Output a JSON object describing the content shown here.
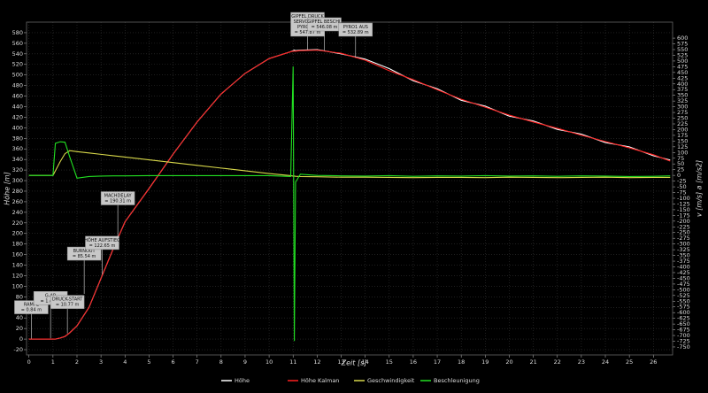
{
  "chart_data": {
    "type": "line",
    "x_label": "Zeit [s]",
    "y_label": "Höhe [m]",
    "y2_label": "v [m/s]  a [m/s2]",
    "grid": true,
    "legend": "bottom",
    "x": [
      0,
      0.5,
      1,
      1.1,
      1.3,
      1.5,
      1.7,
      2,
      2.5,
      3,
      3.5,
      4,
      5,
      6,
      7,
      8,
      9,
      10,
      10.9,
      11,
      11.05,
      11.1,
      11.3,
      12,
      13,
      14,
      15,
      16,
      17,
      18,
      19,
      20,
      21,
      22,
      23,
      24,
      25,
      26,
      26.7
    ],
    "xlim": [
      -0.1,
      26.8
    ],
    "xticks": [
      0,
      1,
      2,
      3,
      4,
      5,
      6,
      7,
      8,
      9,
      10,
      11,
      12,
      13,
      14,
      15,
      16,
      17,
      18,
      19,
      20,
      21,
      22,
      23,
      24,
      25,
      26
    ],
    "ylim": [
      -30,
      600
    ],
    "yticks": [
      -20,
      0,
      20,
      40,
      60,
      80,
      100,
      120,
      140,
      160,
      180,
      200,
      220,
      240,
      260,
      280,
      300,
      320,
      340,
      360,
      380,
      400,
      420,
      440,
      460,
      480,
      500,
      520,
      540,
      560,
      580
    ],
    "y2lim": [
      -785,
      670
    ],
    "y2ticks": [
      -750,
      -725,
      -700,
      -675,
      -650,
      -625,
      -600,
      -575,
      -550,
      -525,
      -500,
      -475,
      -450,
      -425,
      -400,
      -375,
      -350,
      -325,
      -300,
      -275,
      -250,
      -225,
      -200,
      -175,
      -150,
      -125,
      -100,
      -75,
      -50,
      -25,
      0,
      25,
      50,
      75,
      100,
      125,
      150,
      175,
      200,
      225,
      250,
      275,
      300,
      325,
      350,
      375,
      400,
      425,
      450,
      475,
      500,
      525,
      550,
      575,
      600
    ],
    "series": [
      {
        "name": "Höhe",
        "color": "#ffffff",
        "values": [
          0,
          0,
          0,
          0,
          2,
          5,
          12,
          25,
          60,
          115,
          170,
          222,
          285,
          350,
          411,
          464,
          503,
          531,
          544,
          546,
          547,
          546,
          547,
          548,
          540,
          530,
          512,
          489,
          474,
          452,
          441,
          422,
          413,
          397,
          388,
          372,
          364,
          347,
          339
        ]
      },
      {
        "name": "Höhe Kalman",
        "color": "#ff2020",
        "values": [
          0,
          0,
          0,
          0,
          2,
          5,
          12,
          25,
          60,
          115,
          170,
          222,
          285,
          350,
          411,
          464,
          503,
          531,
          544,
          545,
          545,
          545,
          546,
          547,
          541,
          528,
          508,
          491,
          472,
          454,
          439,
          424,
          411,
          399,
          386,
          374,
          362,
          349,
          337
        ]
      },
      {
        "name": "Geschwindigkeit",
        "color": "#d8d84a",
        "axis": "y2",
        "values": [
          0,
          0,
          0,
          20,
          60,
          95,
          108,
          104,
          98,
          92,
          86,
          80,
          68,
          56,
          44,
          32,
          20,
          8,
          -1,
          -3,
          -3,
          -4,
          -5,
          -6,
          -8,
          -8,
          -9,
          -10,
          -9,
          -9,
          -10,
          -8,
          -9,
          -10,
          -9,
          -8,
          -10,
          -9,
          -9
        ]
      },
      {
        "name": "Beschleunigung",
        "color": "#22e022",
        "axis": "y2",
        "values": [
          0,
          0,
          0,
          140,
          147,
          145,
          80,
          -12,
          -5,
          -3,
          -2,
          -2,
          -1,
          -1,
          -1,
          -1,
          -1,
          -1,
          -5,
          476,
          -724,
          -30,
          5,
          0,
          -2,
          -3,
          -1,
          -4,
          -2,
          -3,
          -1,
          -3,
          -2,
          -4,
          -2,
          -3,
          -5,
          -4,
          -2
        ]
      }
    ],
    "annotations": [
      {
        "lines": [
          "RAMPE"
        ],
        "x": 0.1,
        "y": 0.84,
        "value_label": "= 0.84 m"
      },
      {
        "lines": [
          "G-AR"
        ],
        "x": 0.9,
        "y": 1.4,
        "value_label": "= 1.40 m"
      },
      {
        "lines": [
          "DRUCK-START"
        ],
        "x": 1.6,
        "y": 10.77,
        "value_label": "= 10.77 m"
      },
      {
        "lines": [
          "BURNOUT"
        ],
        "x": 2.3,
        "y": 85.54,
        "value_label": "= 85.54 m"
      },
      {
        "lines": [
          "HÖHE AUFSTIEG"
        ],
        "x": 3.05,
        "y": 122.65,
        "value_label": "= 122.65 m"
      },
      {
        "lines": [
          "MACHDELAY"
        ],
        "x": 3.7,
        "y": 190.31,
        "value_label": "= 190.31 m"
      },
      {
        "lines": [
          "GIPFEL DRUCK",
          "SERVO1 AUS",
          "PYRO1 AI"
        ],
        "x": 11.6,
        "y": 547.87,
        "value_label": "= 547.87 m"
      },
      {
        "lines": [
          "GIPFEL BESCHL"
        ],
        "x": 12.3,
        "y": 546.08,
        "value_label": "= 546.08 m"
      },
      {
        "lines": [
          "PYRO1 AUS"
        ],
        "x": 13.6,
        "y": 532.89,
        "value_label": "= 532.89 m"
      }
    ]
  }
}
